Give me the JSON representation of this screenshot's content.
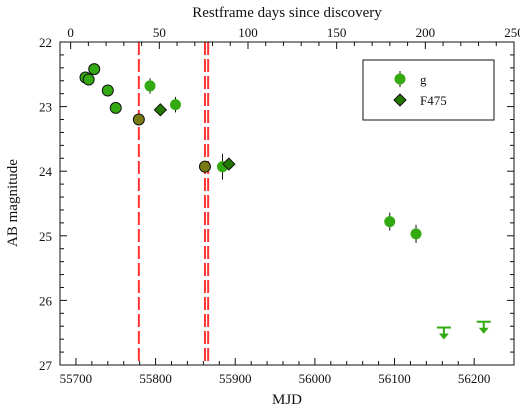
{
  "chart_data": {
    "type": "scatter",
    "title": "",
    "xlabel": "MJD",
    "ylabel": "AB magnitude",
    "top_xlabel": "Restframe days since discovery",
    "xlim": [
      55680,
      56250
    ],
    "ylim": [
      27,
      22
    ],
    "y_inverted": true,
    "top_xlim": [
      -6,
      250
    ],
    "x_ticks": [
      "55700",
      "55800",
      "55900",
      "56000",
      "56100",
      "56200"
    ],
    "y_ticks": [
      "22",
      "23",
      "24",
      "25",
      "26",
      "27"
    ],
    "top_ticks": [
      "0",
      "50",
      "100",
      "150",
      "200",
      "250"
    ],
    "grid": false,
    "legend_position": "top-right",
    "colors": {
      "green": "#33aa11",
      "dark_green": "#227700",
      "orange_green": "#7a7a14",
      "red_line": "#ff3333",
      "axis": "#111111"
    },
    "series": [
      {
        "name": "g",
        "marker": "circle",
        "points": [
          {
            "x": 55712,
            "y": 22.55
          },
          {
            "x": 55716,
            "y": 22.58
          },
          {
            "x": 55723,
            "y": 22.42
          },
          {
            "x": 55740,
            "y": 22.75
          },
          {
            "x": 55750,
            "y": 23.02
          },
          {
            "x": 55779,
            "y": 23.2
          },
          {
            "x": 55793,
            "y": 22.68,
            "err": 0.12
          },
          {
            "x": 55825,
            "y": 22.97,
            "err": 0.12
          },
          {
            "x": 55862,
            "y": 23.93
          },
          {
            "x": 55884,
            "y": 23.93,
            "err": 0.2
          },
          {
            "x": 56094,
            "y": 24.78,
            "err": 0.14
          },
          {
            "x": 56127,
            "y": 24.97,
            "err": 0.14
          }
        ],
        "upper_limits": [
          {
            "x": 56162,
            "y": 26.42
          },
          {
            "x": 56212,
            "y": 26.33
          }
        ]
      },
      {
        "name": "F475",
        "marker": "diamond",
        "points": [
          {
            "x": 55806,
            "y": 23.05
          },
          {
            "x": 55892,
            "y": 23.89
          }
        ]
      }
    ],
    "vertical_lines": [
      {
        "x": 55779
      },
      {
        "x": 55862
      },
      {
        "x": 55866
      }
    ]
  }
}
